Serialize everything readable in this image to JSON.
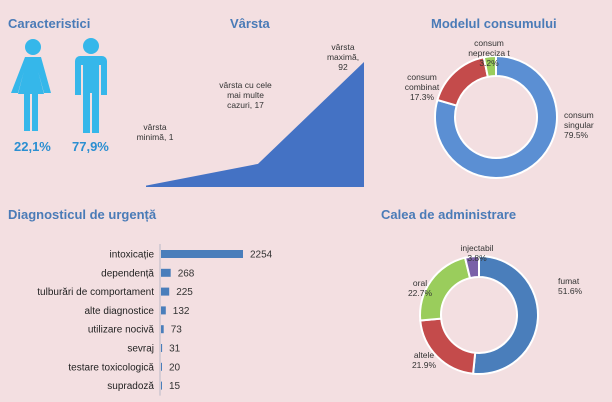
{
  "sections": {
    "characteristics": "Caracteristici",
    "age": "Vârsta",
    "consumption": "Modelul consumului",
    "diagnosis": "Diagnosticul de urgență",
    "administration": "Calea de administrare"
  },
  "gender": {
    "female_pct": "22,1%",
    "male_pct": "77,9%",
    "female_color": "#35b7ea",
    "male_color": "#35b7ea"
  },
  "chart_data": [
    {
      "type": "area",
      "title": "Vârsta",
      "annotations": [
        {
          "text": "vârsta minimă, 1",
          "value": 1
        },
        {
          "text": "vârsta cu cele mai multe cazuri, 17",
          "value": 17
        },
        {
          "text": "vârsta maximă, 92",
          "value": 92
        }
      ],
      "values": [
        1,
        17,
        92
      ],
      "color": "#4472c4"
    },
    {
      "type": "pie",
      "title": "Modelul consumului",
      "slices": [
        {
          "label": "consum singular",
          "value": 79.5,
          "display": "79.5%",
          "color": "#5b8fd3"
        },
        {
          "label": "consum combinat",
          "value": 17.3,
          "display": "17.3%",
          "color": "#c44b4b"
        },
        {
          "label": "consum nepreciza t",
          "value": 3.2,
          "display": "3.2%",
          "color": "#9acd5c"
        }
      ]
    },
    {
      "type": "bar",
      "title": "Diagnosticul de urgență",
      "categories": [
        "intoxicație",
        "dependență",
        "tulburări de comportament",
        "alte diagnostice",
        "utilizare nocivă",
        "sevraj",
        "testare toxicologică",
        "supradoză"
      ],
      "values": [
        2254,
        268,
        225,
        132,
        73,
        31,
        20,
        15
      ],
      "color": "#4a7ebb"
    },
    {
      "type": "pie",
      "title": "Calea de administrare",
      "slices": [
        {
          "label": "fumat",
          "value": 51.6,
          "display": "51.6%",
          "color": "#4a7ebb"
        },
        {
          "label": "altele",
          "value": 21.9,
          "display": "21.9%",
          "color": "#c44b4b"
        },
        {
          "label": "oral",
          "value": 22.7,
          "display": "22.7%",
          "color": "#9acd5c"
        },
        {
          "label": "injectabil",
          "value": 3.8,
          "display": "3.8%",
          "color": "#7a60a8"
        }
      ]
    }
  ]
}
